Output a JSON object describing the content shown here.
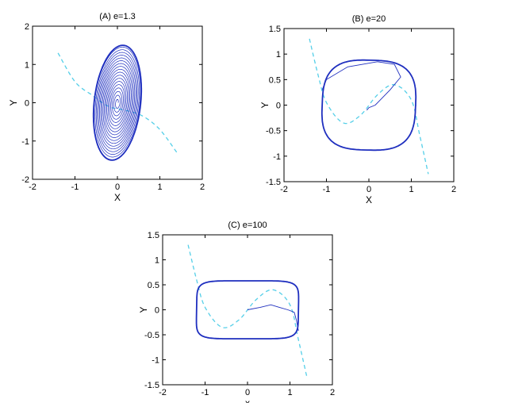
{
  "colors": {
    "trajectory": "#1f2fbf",
    "nullcline": "#55cfe8",
    "axes": "#000000",
    "background": "#ffffff"
  },
  "chart_data": [
    {
      "type": "line",
      "title": "(A) e=1.3",
      "xlabel": "X",
      "ylabel": "Y",
      "xlim": [
        -2,
        2
      ],
      "ylim": [
        -2,
        2
      ],
      "xticks": [
        "-2",
        "-1",
        "0",
        "1",
        "2"
      ],
      "yticks": [
        "2",
        "1",
        "0",
        "-1",
        "-2"
      ],
      "grid": false,
      "series": [
        {
          "style": "solid",
          "description": "spiral trajectory converging to a limit cycle",
          "limit_cycle_extent": {
            "x": [
              -0.55,
              0.6
            ],
            "y": [
              -1.5,
              1.5
            ]
          }
        },
        {
          "style": "dashed",
          "x": [
            -1.4,
            -1.0,
            -0.6,
            -0.2,
            0.2,
            0.6,
            1.0,
            1.4
          ],
          "y": [
            1.3,
            0.55,
            0.2,
            -0.1,
            -0.2,
            -0.35,
            -0.7,
            -1.3
          ]
        }
      ]
    },
    {
      "type": "line",
      "title": "(B) e=20",
      "xlabel": "X",
      "ylabel": "Y",
      "xlim": [
        -2,
        2
      ],
      "ylim": [
        -1.5,
        1.5
      ],
      "xticks": [
        "-2",
        "-1",
        "0",
        "1",
        "2"
      ],
      "yticks": [
        "1.5",
        "1",
        "0.5",
        "0",
        "-0.5",
        "-1",
        "-1.5"
      ],
      "grid": false,
      "series": [
        {
          "style": "solid",
          "description": "relaxation limit cycle",
          "limit_cycle_extent": {
            "x": [
              -1.1,
              1.15
            ],
            "y": [
              -0.9,
              0.9
            ]
          }
        },
        {
          "style": "dashed",
          "x": [
            -1.4,
            -1.2,
            -1.0,
            -0.6,
            -0.2,
            0.2,
            0.6,
            1.0,
            1.2,
            1.4
          ],
          "y": [
            1.3,
            0.6,
            0.05,
            -0.35,
            -0.2,
            0.2,
            0.4,
            0.1,
            -0.6,
            -1.35
          ]
        }
      ]
    },
    {
      "type": "line",
      "title": "(C) e=100",
      "xlabel": "x",
      "ylabel": "Y",
      "xlim": [
        -2,
        2
      ],
      "ylim": [
        -1.5,
        1.5
      ],
      "xticks": [
        "-2",
        "-1",
        "0",
        "1",
        "2"
      ],
      "yticks": [
        "1.5",
        "1",
        "0.5",
        "0",
        "-0.5",
        "-1",
        "-1.5"
      ],
      "grid": false,
      "series": [
        {
          "style": "solid",
          "description": "relaxation limit cycle",
          "limit_cycle_extent": {
            "x": [
              -1.2,
              1.2
            ],
            "y": [
              -0.58,
              0.58
            ]
          }
        },
        {
          "style": "dashed",
          "x": [
            -1.4,
            -1.2,
            -1.0,
            -0.6,
            -0.2,
            0.2,
            0.6,
            1.0,
            1.2,
            1.4
          ],
          "y": [
            1.3,
            0.6,
            0.05,
            -0.35,
            -0.2,
            0.2,
            0.4,
            0.1,
            -0.6,
            -1.35
          ]
        }
      ]
    }
  ]
}
